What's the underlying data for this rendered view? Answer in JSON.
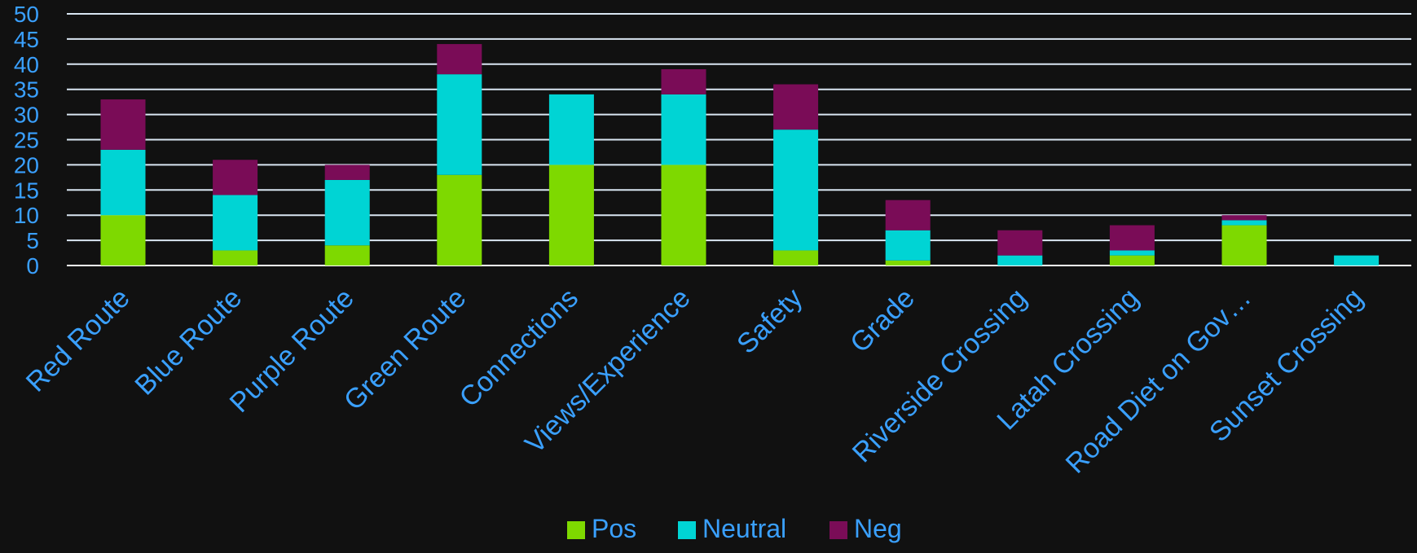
{
  "chart_data": {
    "type": "bar",
    "stacked": true,
    "categories": [
      "Red Route",
      "Blue Route",
      "Purple Route",
      "Green Route",
      "Connections",
      "Views/Experience",
      "Safety",
      "Grade",
      "Riverside Crossing",
      "Latah Crossing",
      "Road Diet on Gov…",
      "Sunset Crossing"
    ],
    "series": [
      {
        "name": "Pos",
        "color": "#7ed900",
        "values": [
          10,
          3,
          4,
          18,
          20,
          20,
          3,
          1,
          0,
          2,
          8,
          0
        ]
      },
      {
        "name": "Neutral",
        "color": "#00d4d4",
        "values": [
          13,
          11,
          13,
          20,
          14,
          14,
          24,
          6,
          2,
          1,
          1,
          2
        ]
      },
      {
        "name": "Neg",
        "color": "#7a0c57",
        "values": [
          10,
          7,
          3,
          6,
          0,
          5,
          9,
          6,
          5,
          5,
          1,
          0
        ]
      }
    ],
    "yticks": [
      0,
      5,
      10,
      15,
      20,
      25,
      30,
      35,
      40,
      45,
      50
    ],
    "ylim": [
      0,
      50
    ],
    "grid": true,
    "legend_position": "bottom-center",
    "title": "",
    "xlabel": "",
    "ylabel": ""
  },
  "theme": {
    "background": "#111111",
    "text_color": "#3aa0ff",
    "grid_color": "#d9e6f2"
  }
}
